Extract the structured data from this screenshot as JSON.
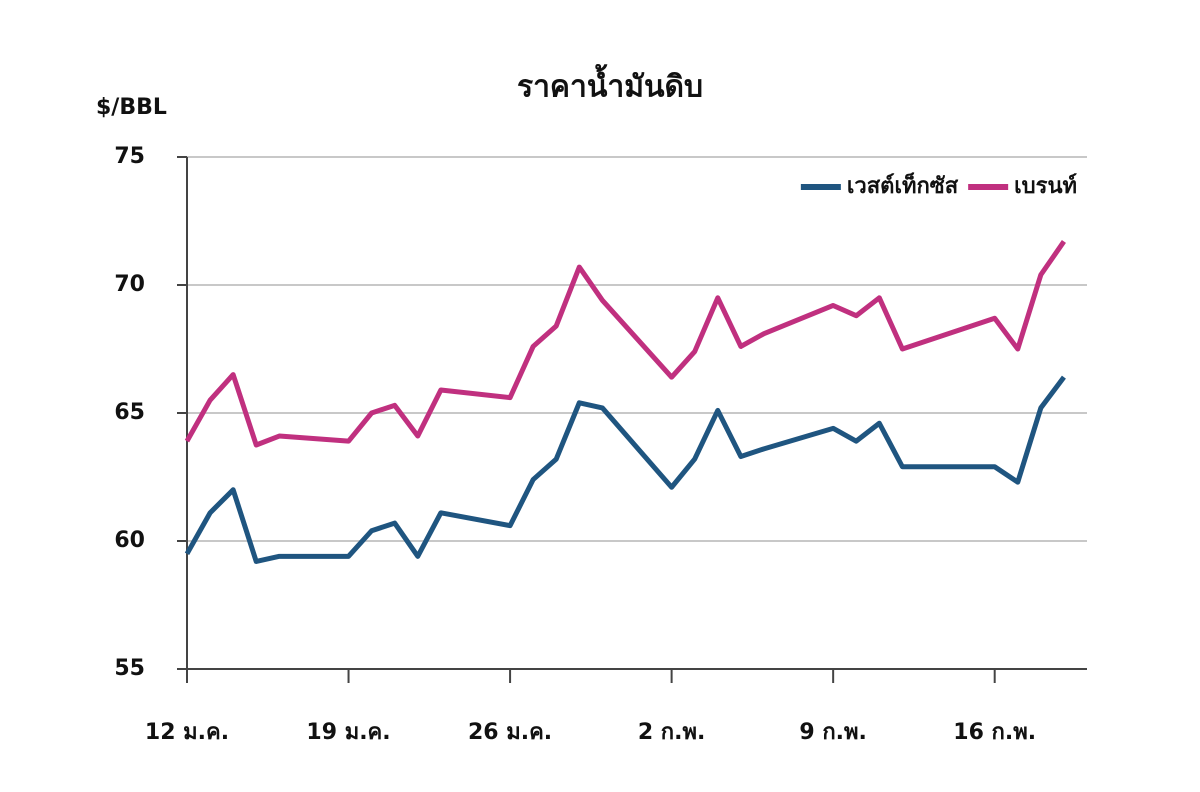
{
  "chart_data": {
    "type": "line",
    "title": "ราคาน้ำมันดิบ",
    "y_label": "$/BBL",
    "x": [
      0,
      1,
      2,
      3,
      4,
      7,
      8,
      9,
      10,
      11,
      14,
      15,
      16,
      17,
      18,
      21,
      22,
      23,
      24,
      25,
      28,
      29,
      30,
      31,
      35,
      36,
      37,
      38
    ],
    "series": [
      {
        "name": "เวสต์เท็กซัส",
        "color": "#1f5580",
        "values": [
          59.5,
          61.1,
          62.0,
          59.2,
          59.4,
          59.4,
          60.4,
          60.7,
          59.4,
          61.1,
          60.6,
          62.4,
          63.2,
          65.4,
          65.2,
          62.1,
          63.2,
          65.1,
          63.3,
          63.6,
          64.4,
          63.9,
          64.6,
          62.9,
          62.9,
          62.3,
          65.2,
          66.4
        ]
      },
      {
        "name": "เบรนท์",
        "color": "#c0307f",
        "values": [
          63.9,
          65.5,
          66.5,
          63.75,
          64.1,
          63.9,
          65.0,
          65.3,
          64.1,
          65.9,
          65.6,
          67.6,
          68.4,
          70.7,
          69.4,
          66.4,
          67.4,
          69.5,
          67.6,
          68.1,
          69.2,
          68.8,
          69.5,
          67.5,
          68.7,
          67.5,
          70.4,
          71.7
        ]
      }
    ],
    "xlim": [
      0,
      39
    ],
    "xticks": [
      {
        "value": 0,
        "label": "12 ม.ค."
      },
      {
        "value": 7,
        "label": "19 ม.ค."
      },
      {
        "value": 14,
        "label": "26 ม.ค."
      },
      {
        "value": 21,
        "label": "2 ก.พ."
      },
      {
        "value": 28,
        "label": "9 ก.พ."
      },
      {
        "value": 35,
        "label": "16 ก.พ."
      }
    ],
    "ylim": [
      55,
      75
    ],
    "yticks": [
      55,
      60,
      65,
      70,
      75
    ],
    "grid": true,
    "legend": "top-right"
  }
}
